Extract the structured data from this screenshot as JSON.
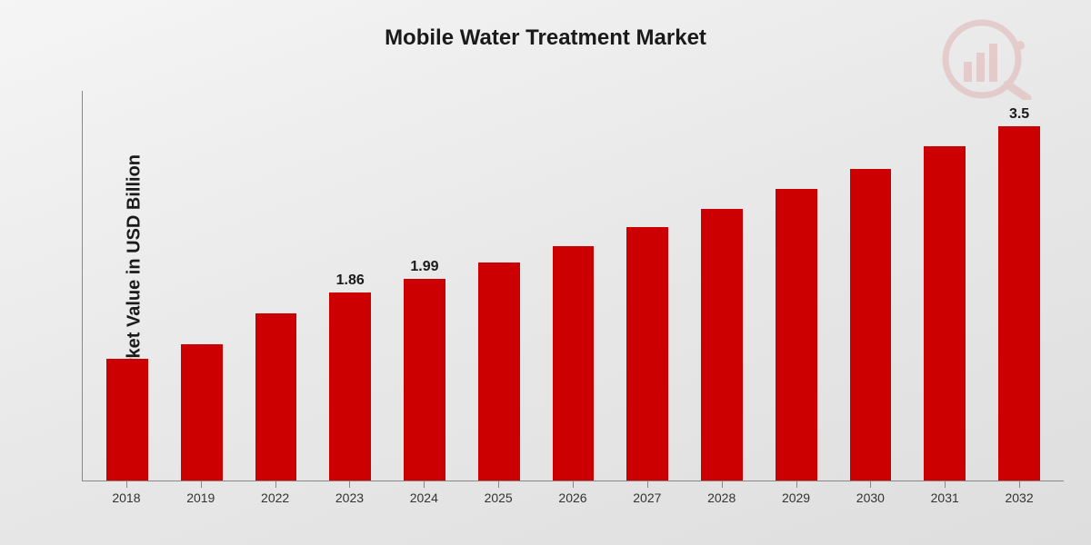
{
  "chart": {
    "type": "bar",
    "title": "Mobile Water Treatment Market",
    "title_fontsize": 24,
    "ylabel": "Market Value in USD Billion",
    "ylabel_fontsize": 20,
    "categories": [
      "2018",
      "2019",
      "2022",
      "2023",
      "2024",
      "2025",
      "2026",
      "2027",
      "2028",
      "2029",
      "2030",
      "2031",
      "2032"
    ],
    "values": [
      1.2,
      1.35,
      1.65,
      1.86,
      1.99,
      2.15,
      2.32,
      2.5,
      2.68,
      2.88,
      3.08,
      3.3,
      3.5
    ],
    "value_labels": {
      "3": "1.86",
      "4": "1.99",
      "12": "3.5"
    },
    "bar_color": "#cc0000",
    "bar_width_pct": 56,
    "ylim": [
      0,
      3.85
    ],
    "background": "linear-gradient(160deg,#f5f5f5 0%,#e8e8e8 50%,#dedede 100%)",
    "axis_color": "#888888",
    "text_color": "#1a1a1a",
    "xcat_fontsize": 14,
    "value_label_fontsize": 16,
    "watermark_color": "#c00000",
    "watermark_opacity": 0.12
  }
}
